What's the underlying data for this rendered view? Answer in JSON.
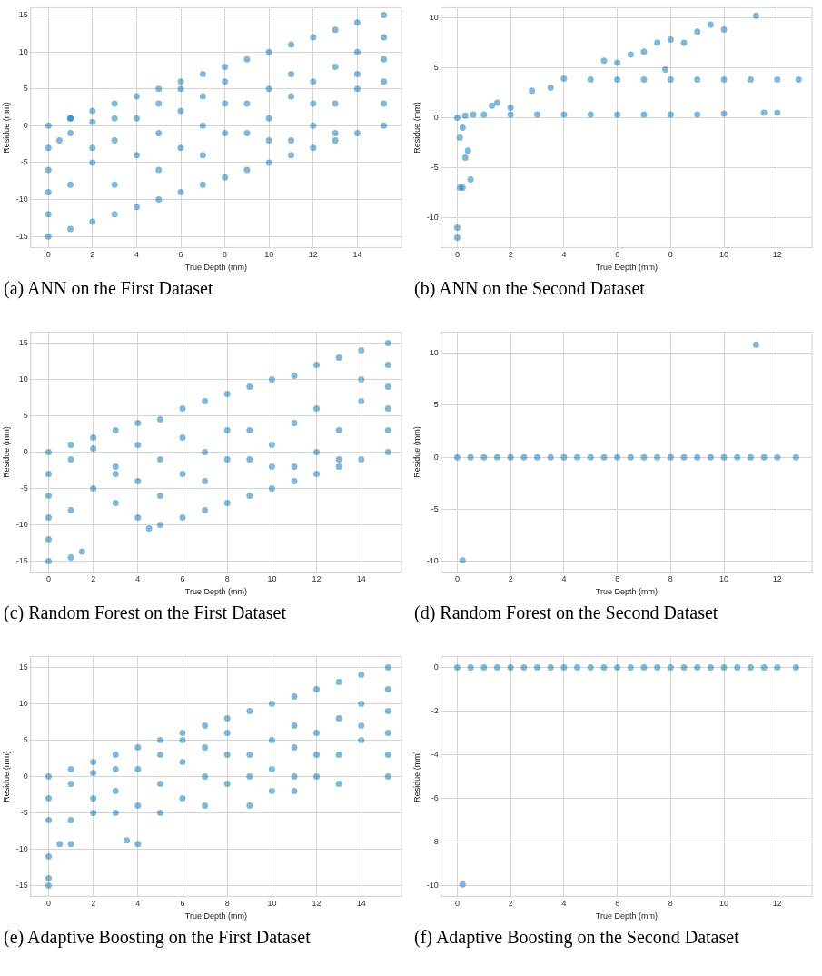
{
  "chart_data": [
    {
      "type": "scatter",
      "title": "(a) ANN on the First Dataset",
      "xlabel": "True Depth (mm)",
      "ylabel": "Residue (mm)",
      "color": "#0072b2",
      "marker": "circle",
      "grid": true,
      "xlim": [
        -0.8,
        16
      ],
      "ylim": [
        -16.5,
        16
      ],
      "xticks": [
        0,
        2,
        4,
        6,
        8,
        10,
        12,
        14
      ],
      "yticks": [
        -15,
        -10,
        -5,
        0,
        5,
        10,
        15
      ],
      "x": [
        0,
        1,
        2,
        3,
        4,
        5,
        6,
        7,
        8,
        9,
        10,
        11,
        12,
        13,
        14,
        15.2,
        0,
        1,
        2,
        3,
        4,
        5,
        6,
        7,
        8,
        9,
        10,
        11,
        12,
        13,
        14,
        15.2,
        0,
        0,
        0,
        0,
        15.2,
        15.2,
        15.2,
        15.2,
        1,
        2,
        3,
        4,
        5,
        6,
        7,
        8,
        9,
        10,
        11,
        12,
        13,
        14,
        12,
        10,
        8,
        6,
        4,
        2,
        1,
        3,
        5,
        7,
        9,
        11,
        13,
        14,
        13,
        11,
        10,
        6,
        5,
        3,
        2,
        1,
        0.5,
        7,
        8,
        12,
        14
      ],
      "values": [
        0,
        1,
        2,
        3,
        4,
        5,
        6,
        7,
        8,
        9,
        10,
        11,
        12,
        13,
        14,
        15,
        -15,
        -14,
        -13,
        -12,
        -11,
        -10,
        -9,
        -8,
        -7,
        -6,
        -5,
        -4,
        -3,
        -2,
        -1,
        0,
        -12,
        -9,
        -6,
        -3,
        3,
        6,
        9,
        12,
        -1,
        0.5,
        -2,
        1,
        -1,
        2,
        0,
        -1,
        3,
        1,
        4,
        6,
        3,
        7,
        0,
        -2,
        3,
        -3,
        -4,
        -5,
        -8,
        -8,
        -6,
        -4,
        -1,
        -2,
        -1,
        10,
        8,
        7,
        5,
        5,
        3,
        1,
        -3,
        1,
        -2,
        4,
        6,
        3,
        5
      ]
    },
    {
      "type": "scatter",
      "title": "(b) ANN on the Second Dataset",
      "xlabel": "True Depth (mm)",
      "ylabel": "Residue (mm)",
      "color": "#0072b2",
      "marker": "circle",
      "grid": true,
      "xlim": [
        -0.6,
        13.3
      ],
      "ylim": [
        -13,
        11
      ],
      "xticks": [
        0,
        2,
        4,
        6,
        8,
        10,
        12
      ],
      "yticks": [
        -10,
        -5,
        0,
        5,
        10
      ],
      "x": [
        0,
        0,
        0.1,
        0.2,
        0.5,
        0.3,
        0.4,
        0.1,
        0.2,
        0,
        0.3,
        0.6,
        1,
        2,
        3,
        4,
        5,
        6,
        7,
        8,
        9,
        10,
        11.5,
        12,
        1.3,
        1.5,
        2,
        2.8,
        3.5,
        4,
        5,
        6,
        7,
        8,
        9,
        10,
        11,
        12,
        12.8,
        5.5,
        6,
        6.5,
        7,
        7.5,
        8,
        8.5,
        9,
        9.5,
        10,
        11.2,
        7.8
      ],
      "values": [
        -12,
        -11,
        -7,
        -7,
        -6.2,
        -4,
        -3.3,
        -2,
        -1,
        0,
        0.2,
        0.3,
        0.3,
        0.3,
        0.3,
        0.3,
        0.3,
        0.3,
        0.3,
        0.3,
        0.3,
        0.4,
        0.5,
        0.5,
        1.2,
        1.5,
        1,
        2.7,
        3,
        3.9,
        3.8,
        3.8,
        3.8,
        3.8,
        3.8,
        3.8,
        3.8,
        3.8,
        3.8,
        5.7,
        5.5,
        6.3,
        6.6,
        7.5,
        7.8,
        7.5,
        8.6,
        9.3,
        8.8,
        10.2,
        4.8
      ]
    },
    {
      "type": "scatter",
      "title": "(c) Random Forest on the First Dataset",
      "xlabel": "True Depth (mm)",
      "ylabel": "Residue (mm)",
      "color": "#0072b2",
      "marker": "circle",
      "grid": true,
      "xlim": [
        -0.8,
        15.8
      ],
      "ylim": [
        -16.5,
        16.5
      ],
      "xticks": [
        0,
        2,
        4,
        6,
        8,
        10,
        12,
        14
      ],
      "yticks": [
        -15,
        -10,
        -5,
        0,
        5,
        10,
        15
      ],
      "x": [
        0,
        1,
        2,
        3,
        4,
        5,
        6,
        7,
        8,
        9,
        10,
        11,
        12,
        13,
        14,
        15.2,
        0,
        1,
        1.5,
        4.5,
        5,
        6,
        7,
        8,
        9,
        10,
        11,
        12,
        13,
        14,
        15.2,
        0,
        0,
        0,
        0,
        15.2,
        15.2,
        15.2,
        15.2,
        1,
        2,
        3,
        4,
        5,
        6,
        7,
        8,
        9,
        10,
        11,
        12,
        13,
        14,
        12,
        10,
        8,
        6,
        4,
        2,
        1,
        3,
        5,
        7,
        9,
        11,
        13,
        14,
        4,
        3
      ],
      "values": [
        0,
        1,
        2,
        3,
        4,
        4.5,
        6,
        7,
        8,
        9,
        10,
        10.5,
        12,
        13,
        14,
        15,
        -15,
        -14.5,
        -13.7,
        -10.5,
        -10,
        -9,
        -8,
        -7,
        -6,
        -5,
        -4,
        -3,
        -2,
        -1,
        0,
        -12,
        -9,
        -6,
        -3,
        3,
        6,
        9,
        12,
        -1,
        0.5,
        -2,
        1,
        -1,
        2,
        0,
        -1,
        3,
        1,
        4,
        6,
        3,
        7,
        0,
        -2,
        3,
        -3,
        -4,
        -5,
        -8,
        -7,
        -6,
        -4,
        -1,
        -2,
        -1,
        10,
        -9,
        -3
      ]
    },
    {
      "type": "scatter",
      "title": "(d) Random Forest on the Second Dataset",
      "xlabel": "True Depth (mm)",
      "ylabel": "Residue (mm)",
      "color": "#0072b2",
      "marker": "circle",
      "grid": true,
      "xlim": [
        -0.6,
        13.3
      ],
      "ylim": [
        -11,
        12
      ],
      "xticks": [
        0,
        2,
        4,
        6,
        8,
        10,
        12
      ],
      "yticks": [
        -10,
        -5,
        0,
        5,
        10
      ],
      "x": [
        0,
        0.5,
        1,
        1.5,
        2,
        2.5,
        3,
        3.5,
        4,
        4.5,
        5,
        5.5,
        6,
        6.5,
        7,
        7.5,
        8,
        8.5,
        9,
        9.5,
        10,
        10.5,
        11,
        11.5,
        12,
        12.7,
        11.2,
        0.2
      ],
      "values": [
        0,
        0,
        0,
        0,
        0,
        0,
        0,
        0,
        0,
        0,
        0,
        0,
        0,
        0,
        0,
        0,
        0,
        0,
        0,
        0,
        0,
        0,
        0,
        0,
        0,
        0,
        10.8,
        -9.9
      ]
    },
    {
      "type": "scatter",
      "title": "(e) Adaptive Boosting on the First Dataset",
      "xlabel": "True Depth (mm)",
      "ylabel": "Residue (mm)",
      "color": "#0072b2",
      "marker": "circle",
      "grid": true,
      "xlim": [
        -0.8,
        15.8
      ],
      "ylim": [
        -16.5,
        16.5
      ],
      "xticks": [
        0,
        2,
        4,
        6,
        8,
        10,
        12,
        14
      ],
      "yticks": [
        -15,
        -10,
        -5,
        0,
        5,
        10,
        15
      ],
      "x": [
        0,
        1,
        2,
        3,
        4,
        5,
        6,
        7,
        8,
        9,
        10,
        11,
        12,
        13,
        14,
        15.2,
        0,
        0,
        0,
        0.5,
        1,
        3.5,
        4,
        0,
        0,
        15.2,
        15.2,
        15.2,
        15.2,
        15.2,
        1,
        2,
        3,
        4,
        5,
        6,
        7,
        8,
        9,
        10,
        11,
        12,
        13,
        14,
        12,
        10,
        8,
        6,
        4,
        2,
        1,
        3,
        5,
        7,
        9,
        11,
        13,
        14,
        13,
        11,
        10,
        6,
        5,
        3,
        2,
        7,
        8,
        12,
        14,
        9,
        11
      ],
      "values": [
        0,
        1,
        2,
        3,
        4,
        5,
        6,
        7,
        8,
        9,
        10,
        11,
        12,
        13,
        14,
        15,
        -15,
        -14,
        -11,
        -9.3,
        -9.3,
        -8.8,
        -9.3,
        -6,
        -3,
        0,
        3,
        6,
        9,
        12,
        -1,
        0.5,
        -2,
        1,
        -1,
        2,
        0,
        -1,
        3,
        1,
        4,
        6,
        3,
        7,
        0,
        -2,
        3,
        -3,
        -4,
        -5,
        -6,
        -5,
        -5,
        -4,
        -4,
        -2,
        -1,
        10,
        8,
        7,
        5,
        5,
        3,
        1,
        -3,
        4,
        6,
        3,
        5,
        0,
        0
      ]
    },
    {
      "type": "scatter",
      "title": "(f) Adaptive Boosting on the Second Dataset",
      "xlabel": "True Depth (mm)",
      "ylabel": "Residue (mm)",
      "color": "#0072b2",
      "marker": "circle",
      "grid": true,
      "xlim": [
        -0.6,
        13.3
      ],
      "ylim": [
        -10.5,
        0.5
      ],
      "xticks": [
        0,
        2,
        4,
        6,
        8,
        10,
        12
      ],
      "yticks": [
        -10,
        -8,
        -6,
        -4,
        -2,
        0
      ],
      "x": [
        0,
        0.5,
        1,
        1.5,
        2,
        2.5,
        3,
        3.5,
        4,
        4.5,
        5,
        5.5,
        6,
        6.5,
        7,
        7.5,
        8,
        8.5,
        9,
        9.5,
        10,
        10.5,
        11,
        11.5,
        12,
        12.7,
        0.2
      ],
      "values": [
        0,
        0,
        0,
        0,
        0,
        0,
        0,
        0,
        0,
        0,
        0,
        0,
        0,
        0,
        0,
        0,
        0,
        0,
        0,
        0,
        0,
        0,
        0,
        0,
        0,
        0,
        -9.95
      ]
    }
  ]
}
